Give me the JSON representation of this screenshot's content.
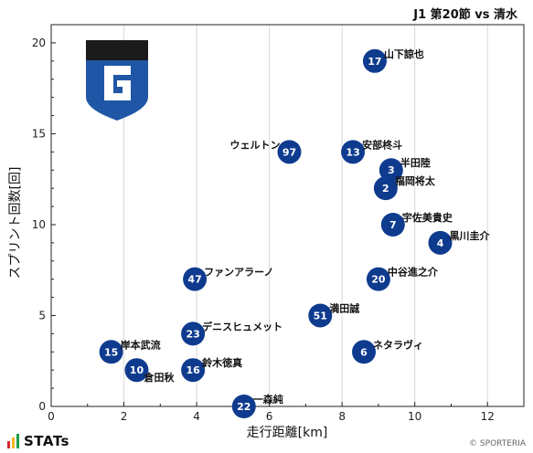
{
  "chart_data": {
    "type": "scatter",
    "title": "J1 第20節 vs 清水",
    "xlabel": "走行距離[km]",
    "ylabel": "スプリント回数[回]",
    "xlim": [
      0,
      13
    ],
    "ylim": [
      0,
      21
    ],
    "xticks": [
      0,
      2,
      4,
      6,
      8,
      10,
      12
    ],
    "yticks": [
      0,
      5,
      10,
      15,
      20
    ],
    "grid": "vertical",
    "point_color": "#0f3b8f",
    "points": [
      {
        "num": "17",
        "name": "山下諒也",
        "x": 8.9,
        "y": 19
      },
      {
        "num": "97",
        "name": "ウェルトン",
        "x": 6.55,
        "y": 14
      },
      {
        "num": "13",
        "name": "安部柊斗",
        "x": 8.3,
        "y": 14
      },
      {
        "num": "3",
        "name": "半田陸",
        "x": 9.35,
        "y": 13
      },
      {
        "num": "2",
        "name": "福岡将太",
        "x": 9.2,
        "y": 12
      },
      {
        "num": "7",
        "name": "宇佐美貴史",
        "x": 9.4,
        "y": 10
      },
      {
        "num": "4",
        "name": "黒川圭介",
        "x": 10.7,
        "y": 9
      },
      {
        "num": "47",
        "name": "ファンアラーノ",
        "x": 3.95,
        "y": 7
      },
      {
        "num": "20",
        "name": "中谷進之介",
        "x": 9.0,
        "y": 7
      },
      {
        "num": "51",
        "name": "満田誠",
        "x": 7.4,
        "y": 5
      },
      {
        "num": "23",
        "name": "デニスヒュメット",
        "x": 3.9,
        "y": 4
      },
      {
        "num": "6",
        "name": "ネタラヴィ",
        "x": 8.6,
        "y": 3
      },
      {
        "num": "15",
        "name": "岸本武流",
        "x": 1.65,
        "y": 3
      },
      {
        "num": "10",
        "name": "倉田秋",
        "x": 2.35,
        "y": 2
      },
      {
        "num": "16",
        "name": "鈴木徳真",
        "x": 3.9,
        "y": 2
      },
      {
        "num": "22",
        "name": "一森純",
        "x": 5.3,
        "y": 0
      }
    ]
  },
  "footer": {
    "brand": "STATs",
    "copyright": "© SPORTERIA"
  },
  "logo": {
    "colors": {
      "top": "#1a1a1a",
      "shield": "#1f56a6",
      "white": "#ffffff"
    }
  }
}
